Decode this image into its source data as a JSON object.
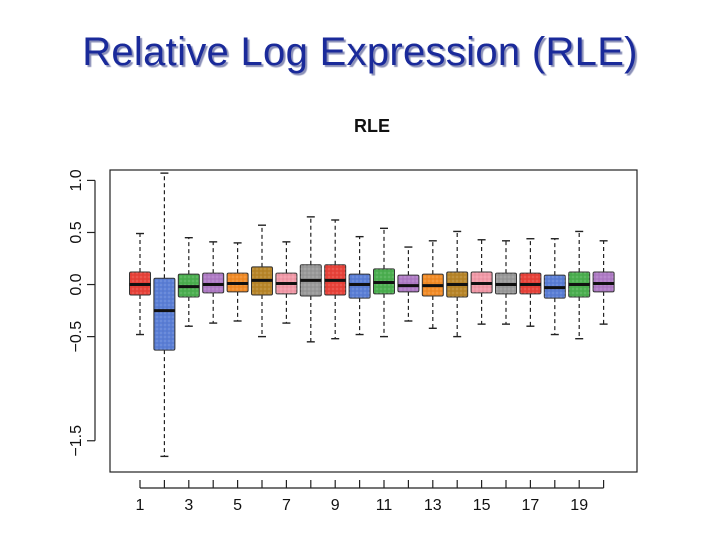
{
  "slide": {
    "title": "Relative Log Expression (RLE)"
  },
  "chart_data": {
    "type": "boxplot",
    "title": "RLE",
    "xlabel": "",
    "ylabel": "",
    "ylim": [
      -1.8,
      1.1
    ],
    "y_ticks": [
      -1.5,
      -0.5,
      0.0,
      0.5,
      1.0
    ],
    "y_tick_labels": [
      "−1.5",
      "−0.5",
      "0.0",
      "0.5",
      "1.0"
    ],
    "x_tick_positions": [
      1,
      3,
      5,
      7,
      9,
      11,
      13,
      15,
      17,
      19
    ],
    "x_tick_labels": [
      "1",
      "3",
      "5",
      "7",
      "9",
      "11",
      "13",
      "15",
      "17",
      "19"
    ],
    "grid": false,
    "boxes": [
      {
        "index": 1,
        "color": "#e8433a",
        "q1": -0.1,
        "median": 0.0,
        "q3": 0.12,
        "whisker_low": -0.48,
        "whisker_high": 0.49
      },
      {
        "index": 2,
        "color": "#5b7fd6",
        "q1": -0.63,
        "median": -0.25,
        "q3": 0.06,
        "whisker_low": -1.65,
        "whisker_high": 1.07
      },
      {
        "index": 3,
        "color": "#4caf50",
        "q1": -0.12,
        "median": -0.02,
        "q3": 0.1,
        "whisker_low": -0.4,
        "whisker_high": 0.45
      },
      {
        "index": 4,
        "color": "#b07cc6",
        "q1": -0.08,
        "median": 0.0,
        "q3": 0.11,
        "whisker_low": -0.37,
        "whisker_high": 0.41
      },
      {
        "index": 5,
        "color": "#f28c28",
        "q1": -0.07,
        "median": 0.01,
        "q3": 0.11,
        "whisker_low": -0.35,
        "whisker_high": 0.4
      },
      {
        "index": 6,
        "color": "#b8862a",
        "q1": -0.1,
        "median": 0.04,
        "q3": 0.17,
        "whisker_low": -0.5,
        "whisker_high": 0.57
      },
      {
        "index": 7,
        "color": "#f29aa8",
        "q1": -0.09,
        "median": 0.01,
        "q3": 0.11,
        "whisker_low": -0.37,
        "whisker_high": 0.41
      },
      {
        "index": 8,
        "color": "#9a9a9a",
        "q1": -0.11,
        "median": 0.04,
        "q3": 0.19,
        "whisker_low": -0.55,
        "whisker_high": 0.65
      },
      {
        "index": 9,
        "color": "#e8433a",
        "q1": -0.1,
        "median": 0.04,
        "q3": 0.19,
        "whisker_low": -0.52,
        "whisker_high": 0.62
      },
      {
        "index": 10,
        "color": "#5b7fd6",
        "q1": -0.13,
        "median": 0.0,
        "q3": 0.1,
        "whisker_low": -0.48,
        "whisker_high": 0.46
      },
      {
        "index": 11,
        "color": "#4caf50",
        "q1": -0.09,
        "median": 0.02,
        "q3": 0.15,
        "whisker_low": -0.5,
        "whisker_high": 0.54
      },
      {
        "index": 12,
        "color": "#b07cc6",
        "q1": -0.07,
        "median": -0.01,
        "q3": 0.09,
        "whisker_low": -0.35,
        "whisker_high": 0.36
      },
      {
        "index": 13,
        "color": "#f28c28",
        "q1": -0.11,
        "median": -0.01,
        "q3": 0.1,
        "whisker_low": -0.42,
        "whisker_high": 0.42
      },
      {
        "index": 14,
        "color": "#b8862a",
        "q1": -0.12,
        "median": 0.0,
        "q3": 0.12,
        "whisker_low": -0.5,
        "whisker_high": 0.51
      },
      {
        "index": 15,
        "color": "#f29aa8",
        "q1": -0.08,
        "median": 0.01,
        "q3": 0.12,
        "whisker_low": -0.38,
        "whisker_high": 0.43
      },
      {
        "index": 16,
        "color": "#9a9a9a",
        "q1": -0.09,
        "median": 0.0,
        "q3": 0.11,
        "whisker_low": -0.38,
        "whisker_high": 0.42
      },
      {
        "index": 17,
        "color": "#e8433a",
        "q1": -0.09,
        "median": 0.0,
        "q3": 0.11,
        "whisker_low": -0.4,
        "whisker_high": 0.44
      },
      {
        "index": 18,
        "color": "#5b7fd6",
        "q1": -0.13,
        "median": -0.03,
        "q3": 0.09,
        "whisker_low": -0.48,
        "whisker_high": 0.44
      },
      {
        "index": 19,
        "color": "#4caf50",
        "q1": -0.12,
        "median": 0.0,
        "q3": 0.12,
        "whisker_low": -0.52,
        "whisker_high": 0.51
      },
      {
        "index": 20,
        "color": "#b07cc6",
        "q1": -0.07,
        "median": 0.01,
        "q3": 0.12,
        "whisker_low": -0.38,
        "whisker_high": 0.42
      }
    ]
  }
}
